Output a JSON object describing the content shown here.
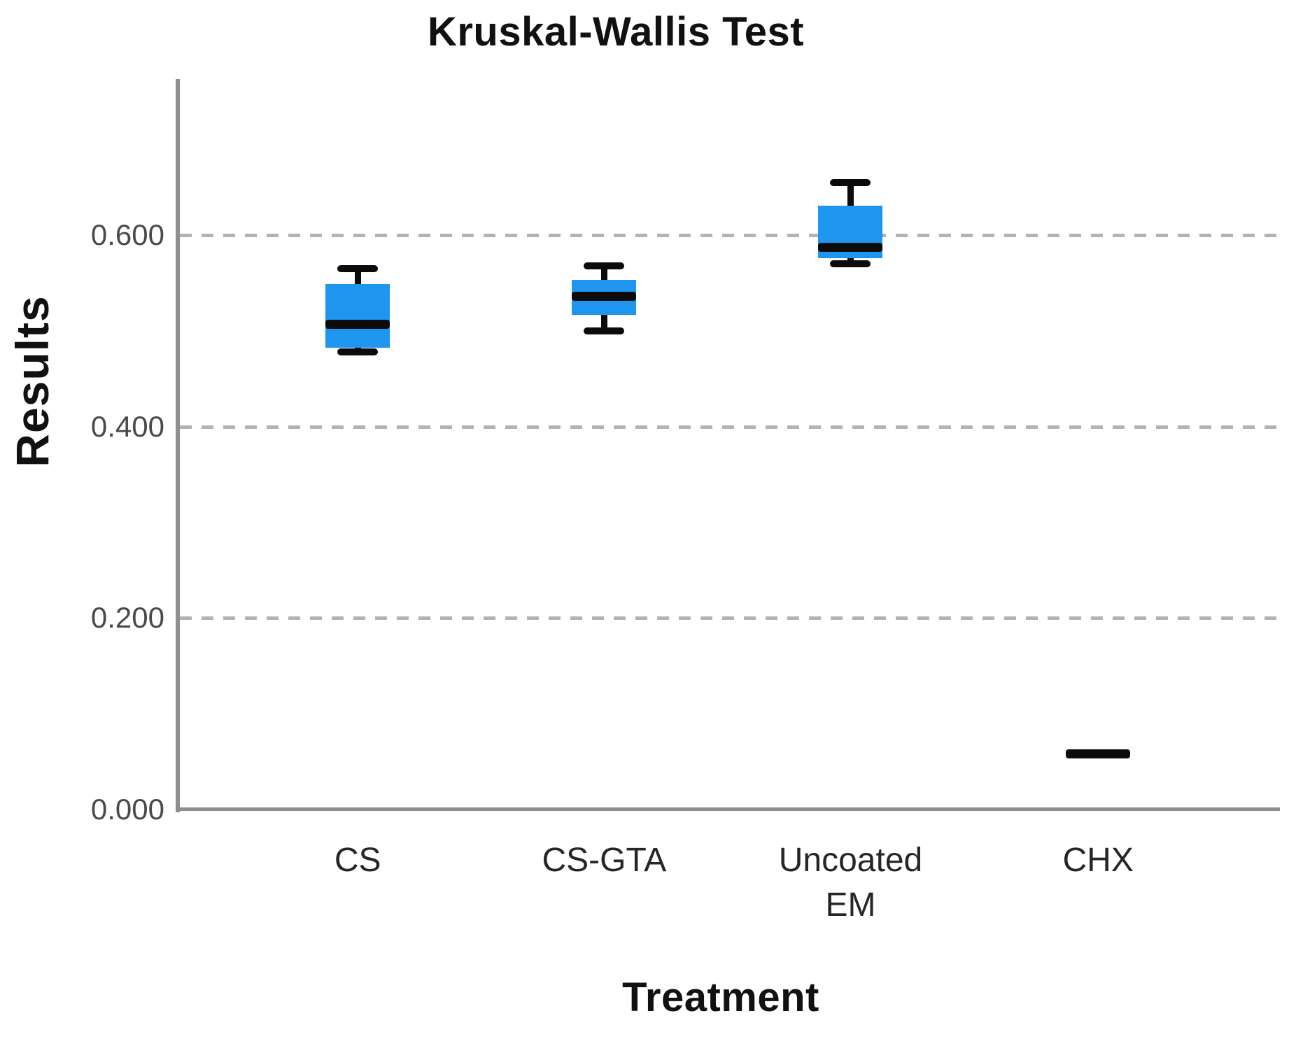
{
  "chart_data": {
    "type": "box",
    "title": "Kruskal-Wallis Test",
    "xlabel": "Treatment",
    "ylabel": "Results",
    "legend": "none",
    "grid": "horizontal dashed gridlines at labeled ticks (none at 0.000)",
    "ylim": [
      0.0,
      0.763
    ],
    "y_ticks": [
      {
        "label": "0.000",
        "value": 0.0
      },
      {
        "label": "0.200",
        "value": 0.2
      },
      {
        "label": "0.400",
        "value": 0.4
      },
      {
        "label": "0.600",
        "value": 0.6
      }
    ],
    "categories": [
      "CS",
      "CS-GTA",
      "Uncoated EM",
      "CHX"
    ],
    "series": [
      {
        "category": "CS",
        "whisker_low": 0.478,
        "q1": 0.482,
        "median": 0.507,
        "q3": 0.549,
        "whisker_high": 0.565
      },
      {
        "category": "CS-GTA",
        "whisker_low": 0.5,
        "q1": 0.517,
        "median": 0.536,
        "q3": 0.553,
        "whisker_high": 0.568
      },
      {
        "category": "Uncoated EM",
        "whisker_low": 0.57,
        "q1": 0.576,
        "median": 0.587,
        "q3": 0.631,
        "whisker_high": 0.655
      },
      {
        "category": "CHX",
        "whisker_low": 0.058,
        "q1": 0.058,
        "median": 0.058,
        "q3": 0.058,
        "whisker_high": 0.058
      }
    ],
    "colors": {
      "box_fill": "#1e96f0",
      "median_and_whiskers": "#0b0b0b",
      "axis_line": "#8f8f8f",
      "gridline": "#b3b3b3",
      "tick_label": "#4a4a4a",
      "text": "#111111"
    }
  }
}
